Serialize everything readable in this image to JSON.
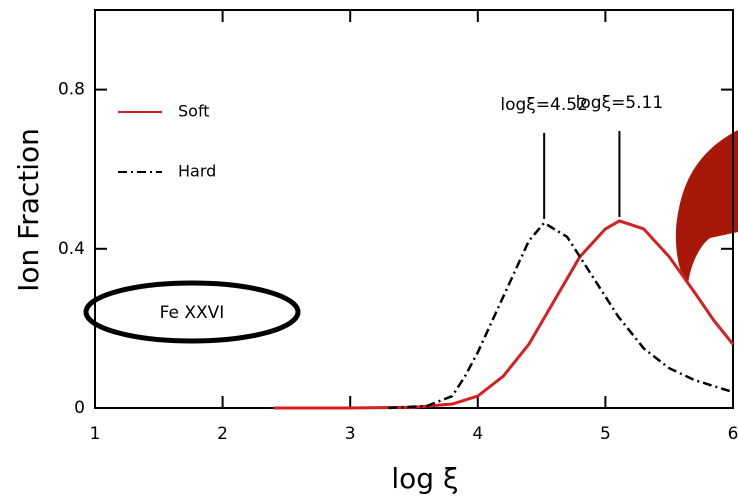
{
  "chart_data": {
    "type": "line",
    "x_label": "log ξ",
    "y_label": "Ion Fraction",
    "xlim": [
      1,
      6
    ],
    "ylim": [
      0,
      1
    ],
    "xticks": [
      1,
      2,
      3,
      4,
      5,
      6
    ],
    "yticks": [
      0,
      0.4,
      0.8
    ],
    "legend": "upper left",
    "ion_label": "Fe XXVI",
    "series": [
      {
        "name": "Soft",
        "color": "#d42020",
        "style": "solid",
        "x": [
          2.4,
          3.0,
          3.5,
          3.8,
          4.0,
          4.2,
          4.4,
          4.6,
          4.8,
          5.0,
          5.11,
          5.3,
          5.5,
          5.7,
          5.85,
          6.0
        ],
        "values": [
          0,
          0,
          0.002,
          0.01,
          0.03,
          0.08,
          0.16,
          0.27,
          0.38,
          0.45,
          0.47,
          0.45,
          0.38,
          0.29,
          0.22,
          0.16
        ]
      },
      {
        "name": "Hard",
        "color": "#000000",
        "style": "dashdot",
        "x": [
          3.3,
          3.6,
          3.8,
          3.9,
          4.0,
          4.2,
          4.4,
          4.52,
          4.7,
          4.9,
          5.1,
          5.3,
          5.5,
          5.7,
          5.9,
          6.0
        ],
        "values": [
          0,
          0.005,
          0.03,
          0.08,
          0.14,
          0.28,
          0.42,
          0.465,
          0.43,
          0.33,
          0.23,
          0.15,
          0.1,
          0.07,
          0.05,
          0.04
        ]
      }
    ],
    "annotations": [
      {
        "text": "logξ=5.11",
        "x": 5.11,
        "y": 0.47
      },
      {
        "text": "logξ=4.52",
        "x": 4.52,
        "y": 0.465
      }
    ]
  }
}
